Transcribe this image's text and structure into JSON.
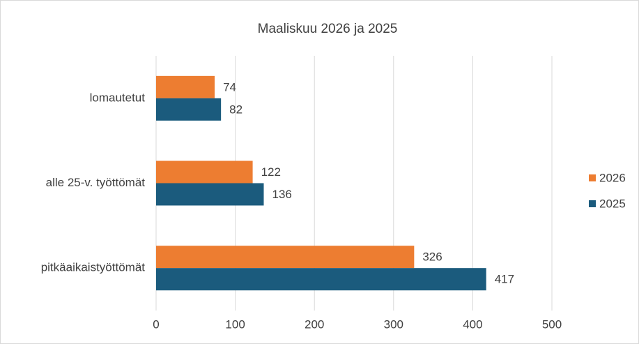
{
  "chart_data": {
    "type": "bar",
    "orientation": "horizontal",
    "title": "Maaliskuu 2026 ja 2025",
    "categories": [
      "lomautetut",
      "alle 25-v. työttömät",
      "pitkäaikaistyöttömät"
    ],
    "series": [
      {
        "name": "2026",
        "color": "#ed7d31",
        "values": [
          74,
          122,
          326
        ]
      },
      {
        "name": "2025",
        "color": "#1b5b7d",
        "values": [
          82,
          136,
          417
        ]
      }
    ],
    "xlim": [
      0,
      500
    ],
    "xticks": [
      0,
      100,
      200,
      300,
      400,
      500
    ],
    "grid": true,
    "legend": "right"
  }
}
